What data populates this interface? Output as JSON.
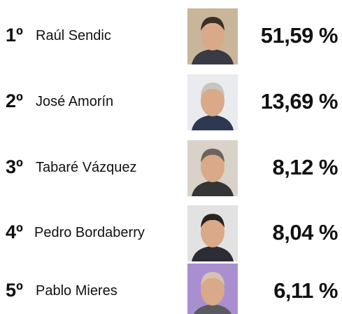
{
  "rows": [
    {
      "rank": "1º",
      "name": "Raúl Sendic",
      "value": "51,59 %"
    },
    {
      "rank": "2º",
      "name": "José Amorín",
      "value": "13,69 %"
    },
    {
      "rank": "3º",
      "name": "Tabaré Vázquez",
      "value": "8,12 %"
    },
    {
      "rank": "4º",
      "name": "Pedro Bordaberry",
      "value": "8,04 %"
    },
    {
      "rank": "5º",
      "name": "Pablo Mieres",
      "value": "6,11 %"
    }
  ]
}
